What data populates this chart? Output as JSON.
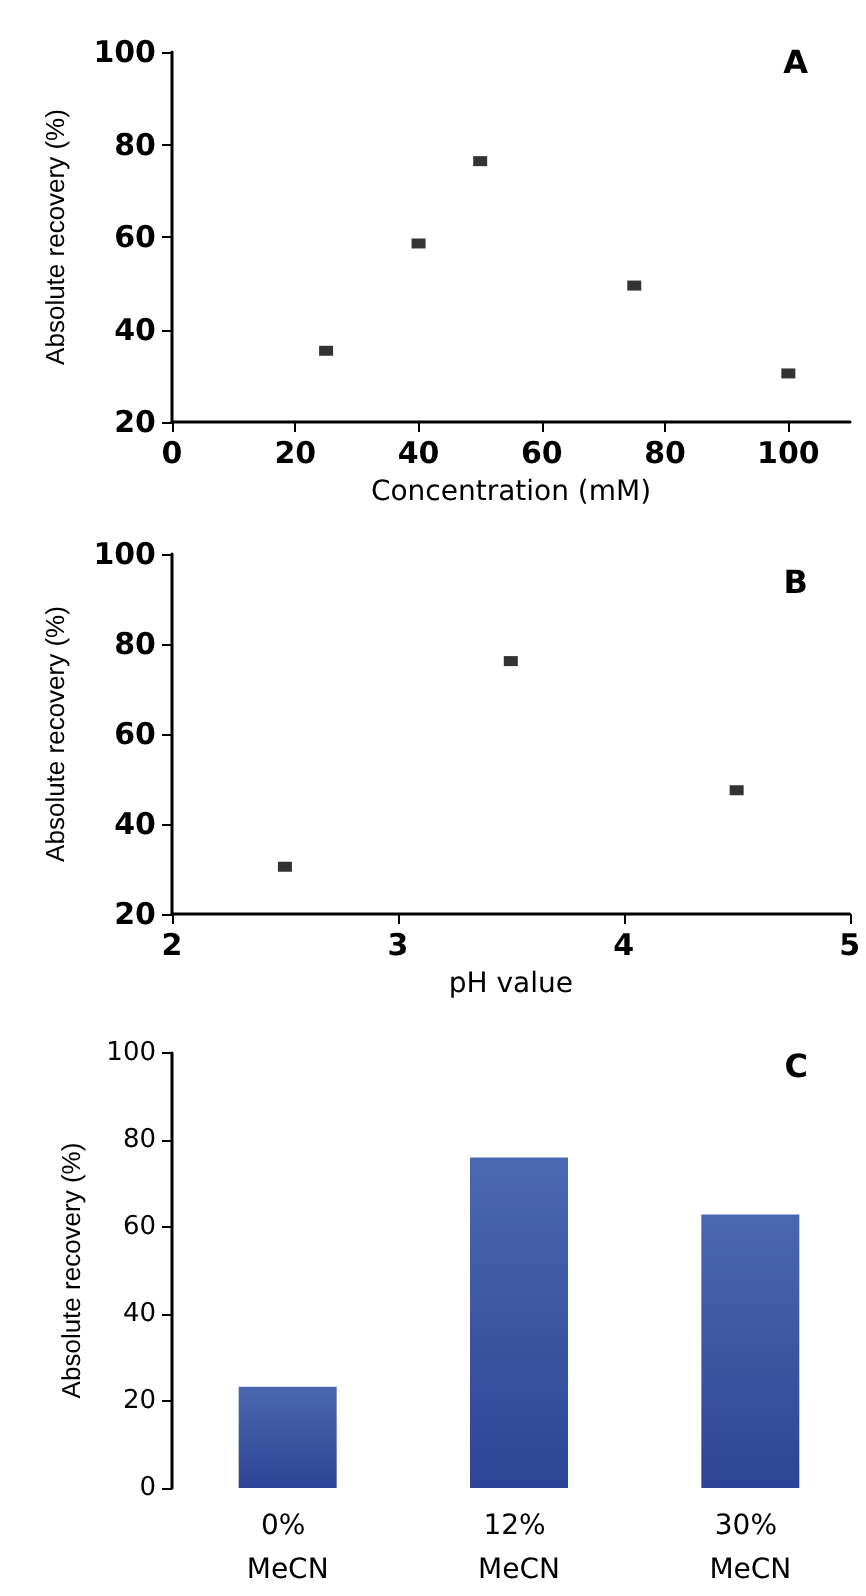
{
  "chart_data": [
    {
      "type": "scatter",
      "title": "A",
      "xlabel": "Concentration (mM)",
      "ylabel": "Absolute recovery (%)",
      "marker": "square",
      "x": [
        25,
        40,
        50,
        75,
        100
      ],
      "values": [
        35.4,
        58.6,
        76.4,
        49.5,
        30.5
      ],
      "color": "#000000",
      "xlim": [
        0,
        110
      ],
      "xticks": [
        0,
        20,
        40,
        60,
        80,
        100
      ],
      "ylim": [
        20,
        100
      ],
      "yticks": [
        20,
        40,
        60,
        80,
        100
      ]
    },
    {
      "type": "scatter",
      "title": "B",
      "xlabel": "pH value",
      "ylabel": "Absolute recovery (%)",
      "marker": "square",
      "x": [
        2.5,
        3.5,
        4.5
      ],
      "values": [
        30.5,
        76.2,
        47.5
      ],
      "color": "#000000",
      "xlim": [
        2,
        5
      ],
      "xticks": [
        2,
        3,
        4,
        5
      ],
      "ylim": [
        20,
        100
      ],
      "yticks": [
        20,
        40,
        60,
        80,
        100
      ]
    },
    {
      "type": "bar",
      "title": "C",
      "ylabel": "Absolute recovery (%)",
      "categories": [
        "0% MeCN",
        "12% MeCN",
        "30% MeCN"
      ],
      "values": [
        23.3,
        76,
        62.9
      ],
      "color": "#2e4496",
      "ylim": [
        0,
        100
      ],
      "yticks": [
        0,
        20,
        40,
        60,
        80,
        100
      ]
    }
  ]
}
